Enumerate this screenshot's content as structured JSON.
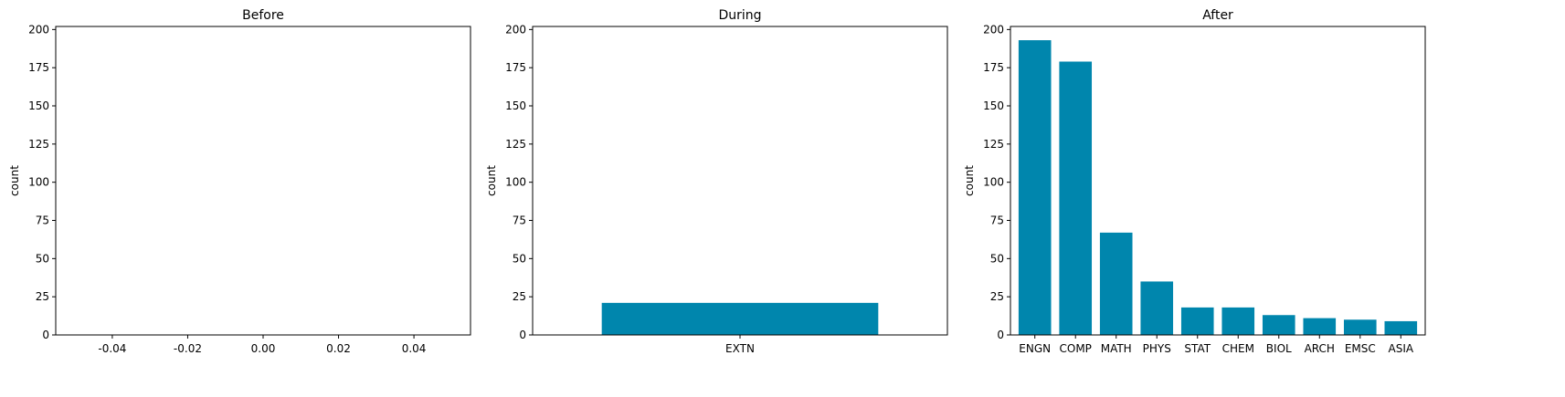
{
  "chart_data": [
    {
      "type": "bar",
      "title": "Before",
      "ylabel": "count",
      "categories": [],
      "values": [],
      "ylim": [
        0,
        202
      ],
      "yticks": [
        0,
        25,
        50,
        75,
        100,
        125,
        150,
        175,
        200
      ],
      "xlim": [
        -0.055,
        0.055
      ],
      "xticks": [
        "-0.04",
        "-0.02",
        "0.00",
        "0.02",
        "0.04"
      ],
      "xtick_values": [
        -0.04,
        -0.02,
        0.0,
        0.02,
        0.04
      ],
      "bar_color": "#0086ad",
      "grid": false
    },
    {
      "type": "bar",
      "title": "During",
      "ylabel": "count",
      "categories": [
        "EXTN"
      ],
      "values": [
        21
      ],
      "ylim": [
        0,
        202
      ],
      "yticks": [
        0,
        25,
        50,
        75,
        100,
        125,
        150,
        175,
        200
      ],
      "bar_color": "#0086ad",
      "grid": false
    },
    {
      "type": "bar",
      "title": "After",
      "ylabel": "count",
      "categories": [
        "ENGN",
        "COMP",
        "MATH",
        "PHYS",
        "STAT",
        "CHEM",
        "BIOL",
        "ARCH",
        "EMSC",
        "ASIA"
      ],
      "values": [
        193,
        179,
        67,
        35,
        18,
        18,
        13,
        11,
        10,
        9
      ],
      "ylim": [
        0,
        202
      ],
      "yticks": [
        0,
        25,
        50,
        75,
        100,
        125,
        150,
        175,
        200
      ],
      "bar_color": "#0086ad",
      "grid": false
    }
  ]
}
